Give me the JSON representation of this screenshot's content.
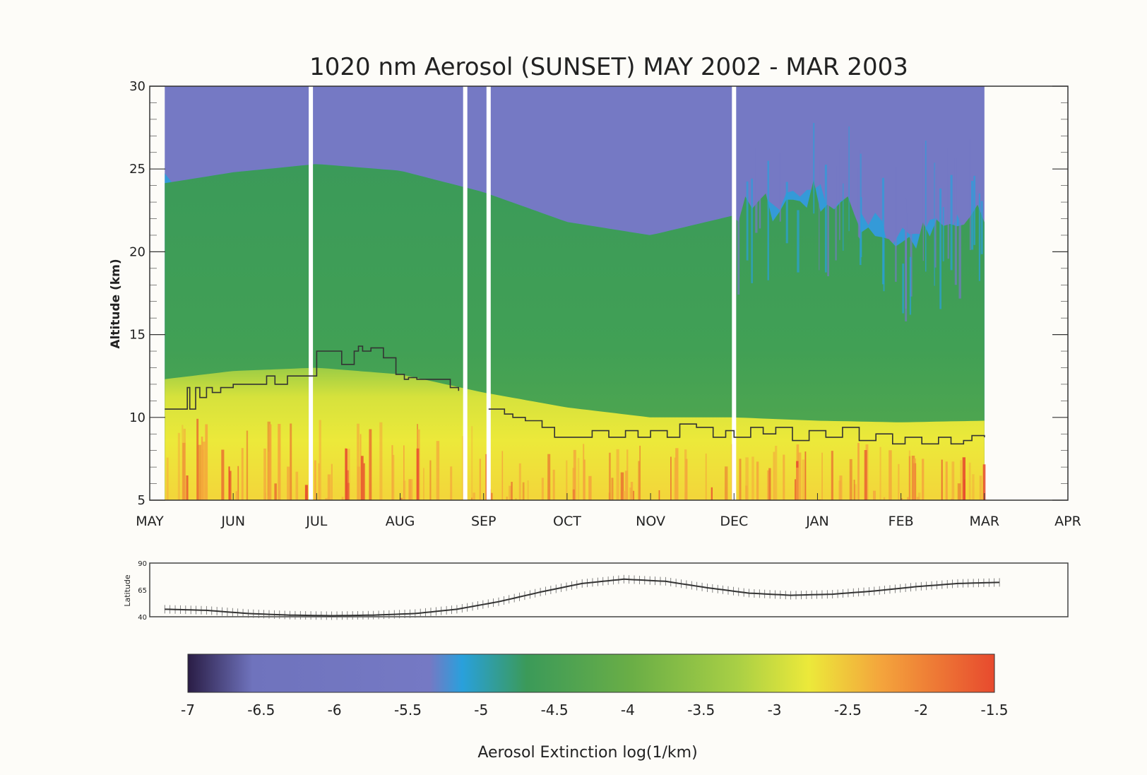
{
  "colors": {
    "background": "#fdfcf8",
    "axis": "#333333",
    "tropopause": "#333333",
    "gap": "#ffffff",
    "palette": [
      "#2a1d45",
      "#6f73bd",
      "#7579c4",
      "#29a0dc",
      "#3b9a59",
      "#6aae46",
      "#a8cf45",
      "#ece93a",
      "#f4a43c",
      "#e74a2e"
    ]
  },
  "chart_data": [
    {
      "type": "heatmap",
      "title": "1020 nm Aerosol (SUNSET)   MAY 2002 - MAR 2003",
      "xlabel": "",
      "ylabel": "Altitude (km)",
      "x_ticks": [
        "MAY",
        "JUN",
        "JUL",
        "AUG",
        "SEP",
        "OCT",
        "NOV",
        "DEC",
        "JAN",
        "FEB",
        "MAR",
        "APR"
      ],
      "y_ticks": [
        30,
        25,
        20,
        15,
        10,
        5
      ],
      "xlim_months": [
        0,
        11
      ],
      "ylim": [
        5,
        30
      ],
      "data_extent_months": [
        0.18,
        10.0
      ],
      "data_gaps_months": [
        1.93,
        3.78,
        4.06,
        7.0
      ],
      "color_quantity": "log10 aerosol extinction (1/km)",
      "layer_boundaries": {
        "x_months": [
          0.0,
          1.0,
          2.0,
          3.0,
          4.0,
          5.0,
          6.0,
          7.0,
          8.0,
          9.0,
          10.0
        ],
        "stratosphere_top_km": [
          24.0,
          24.8,
          25.3,
          24.9,
          23.6,
          21.8,
          21.0,
          22.2,
          23.5,
          20.5,
          22.0
        ],
        "aerosol_layer_top_km": [
          12.2,
          12.8,
          13.0,
          12.6,
          11.5,
          10.6,
          10.0,
          10.0,
          9.8,
          9.7,
          9.8
        ]
      },
      "tropopause": {
        "x_months": [
          0.18,
          0.45,
          0.48,
          0.55,
          0.6,
          0.68,
          0.75,
          0.85,
          1.0,
          1.2,
          1.4,
          1.5,
          1.65,
          1.8,
          2.0,
          2.2,
          2.3,
          2.45,
          2.5,
          2.55,
          2.65,
          2.8,
          2.95,
          3.05,
          3.1,
          3.2,
          3.4,
          3.6,
          3.7,
          4.06,
          4.25,
          4.35,
          4.5,
          4.7,
          4.85,
          5.0,
          5.3,
          5.5,
          5.7,
          5.85,
          6.0,
          6.2,
          6.35,
          6.55,
          6.75,
          6.9,
          7.0,
          7.2,
          7.35,
          7.5,
          7.7,
          7.9,
          8.1,
          8.3,
          8.5,
          8.7,
          8.9,
          9.05,
          9.25,
          9.45,
          9.6,
          9.75,
          9.85,
          10.0
        ],
        "altitude_km": [
          10.5,
          11.8,
          10.5,
          11.8,
          11.2,
          11.8,
          11.5,
          11.8,
          12.0,
          12.0,
          12.5,
          12.0,
          12.5,
          12.5,
          14.0,
          14.0,
          13.2,
          14.0,
          14.3,
          14.0,
          14.2,
          13.6,
          12.6,
          12.3,
          12.4,
          12.3,
          12.3,
          11.8,
          11.6,
          10.5,
          10.2,
          10.0,
          9.8,
          9.4,
          8.8,
          8.8,
          9.2,
          8.8,
          9.2,
          8.8,
          9.2,
          8.8,
          9.6,
          9.4,
          8.8,
          9.2,
          8.8,
          9.4,
          9.0,
          9.4,
          8.6,
          9.2,
          8.8,
          9.4,
          8.6,
          9.0,
          8.4,
          8.8,
          8.4,
          8.8,
          8.4,
          8.6,
          8.9,
          8.8
        ]
      }
    },
    {
      "type": "line",
      "ylabel": "Latitude",
      "y_ticks": [
        90,
        65,
        40
      ],
      "ylim": [
        40,
        90
      ],
      "x_months": [
        0.0,
        0.5,
        1.0,
        1.5,
        2.0,
        2.5,
        3.0,
        3.5,
        4.0,
        4.5,
        5.0,
        5.5,
        6.0,
        6.5,
        7.0,
        7.5,
        8.0,
        8.5,
        9.0,
        9.5,
        10.0
      ],
      "latitude": [
        47.0,
        46.0,
        43.0,
        41.5,
        41.0,
        41.5,
        43.0,
        47.0,
        54.0,
        63.0,
        71.0,
        75.0,
        73.0,
        67.0,
        62.0,
        60.0,
        61.0,
        64.0,
        68.0,
        71.0,
        72.0
      ]
    },
    {
      "type": "colorbar",
      "xlabel": "Aerosol Extinction log(1/km)",
      "ticks": [
        -7,
        -6.5,
        -6,
        -5.5,
        -5,
        -4.5,
        -4,
        -3.5,
        -3,
        -2.5,
        -2,
        -1.5
      ],
      "range": [
        -7,
        -1.5
      ]
    }
  ]
}
